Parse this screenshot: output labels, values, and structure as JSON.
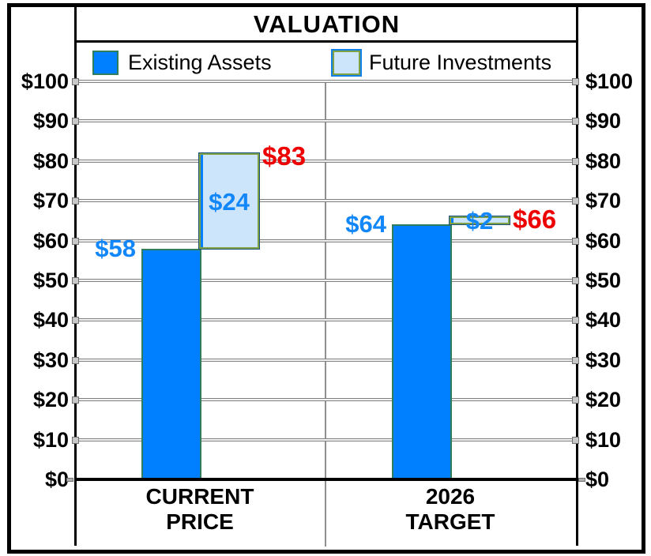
{
  "colors": {
    "existing_fill": "#0080FF",
    "future_fill": "#CDE5FA",
    "bar_border_green": "#2F7D5A",
    "future_border_olive": "#7FA244",
    "value_label_blue": "#1287FA",
    "total_label_red": "#EE0000",
    "grid_gray": "#808080",
    "divider_gray": "#909090",
    "axis_black": "#000000"
  },
  "chart_data": {
    "type": "bar",
    "title": "VALUATION",
    "legend": [
      {
        "name": "Existing Assets",
        "color": "#0080FF"
      },
      {
        "name": "Future Investments",
        "color": "#CDE5FA"
      }
    ],
    "legend_position": "top",
    "grid": true,
    "categories": [
      "CURRENT PRICE",
      "2026 TARGET"
    ],
    "category_lines": [
      [
        "CURRENT",
        "PRICE"
      ],
      [
        "2026",
        "TARGET"
      ]
    ],
    "series": [
      {
        "name": "Existing Assets",
        "values": [
          58,
          64
        ],
        "labels": [
          "$58",
          "$64"
        ]
      },
      {
        "name": "Future Investments",
        "values": [
          24,
          2
        ],
        "labels": [
          "$24",
          "$2"
        ]
      }
    ],
    "totals": [
      83,
      66
    ],
    "total_labels": [
      "$83",
      "$66"
    ],
    "ylabel": "",
    "xlabel": "",
    "ylim": [
      0,
      100
    ],
    "ytick_step": 10,
    "yticks": [
      {
        "value": 0,
        "label": "$0"
      },
      {
        "value": 10,
        "label": "$10"
      },
      {
        "value": 20,
        "label": "$20"
      },
      {
        "value": 30,
        "label": "$30"
      },
      {
        "value": 40,
        "label": "$40"
      },
      {
        "value": 50,
        "label": "$50"
      },
      {
        "value": 60,
        "label": "$60"
      },
      {
        "value": 70,
        "label": "$70"
      },
      {
        "value": 80,
        "label": "$80"
      },
      {
        "value": 90,
        "label": "$90"
      },
      {
        "value": 100,
        "label": "$100"
      }
    ],
    "dual_axis_labels": true
  }
}
